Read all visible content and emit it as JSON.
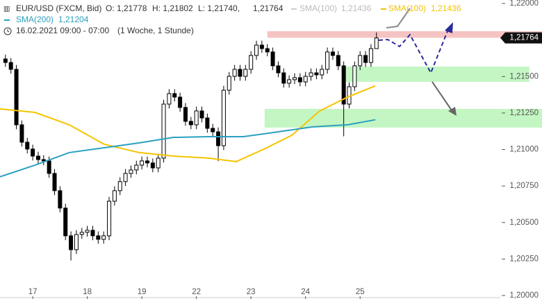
{
  "header": {
    "symbol": "EUR/USD (FXCM, Bid)",
    "open": "O: 1,21778",
    "high": "H: 1,21802",
    "low": "L: 1,21740,",
    "close": "1,21764",
    "sma100_gray": "SMA(100)",
    "sma100_gray_value": "1,21436",
    "sma100_value": "1,21436",
    "sma200_value": "1,21204",
    "date": "16.02.2021 09:00 - 07:00",
    "period": "(1 Woche, 1 Stunde)"
  },
  "chart_data": {
    "type": "candlestick",
    "xlim": [
      0.4,
      9.57
    ],
    "xticks": [
      {
        "value": 1,
        "label": "17"
      },
      {
        "value": 2,
        "label": "18"
      },
      {
        "value": 3,
        "label": "19"
      },
      {
        "value": 4,
        "label": "22"
      },
      {
        "value": 5,
        "label": "23"
      },
      {
        "value": 6,
        "label": "24"
      },
      {
        "value": 7,
        "label": "25"
      }
    ],
    "ylim": [
      1.2,
      1.22
    ],
    "yticks": [
      {
        "value": 1.22,
        "label": "1,22000"
      },
      {
        "value": 1.215,
        "label": "1,21500"
      },
      {
        "value": 1.2125,
        "label": "1,21250"
      },
      {
        "value": 1.21,
        "label": "1,21000"
      },
      {
        "value": 1.2075,
        "label": "1,20750"
      },
      {
        "value": 1.205,
        "label": "1,20500"
      },
      {
        "value": 1.2025,
        "label": "1,20250"
      },
      {
        "value": 1.2,
        "label": "1,20000"
      }
    ],
    "up_color": "#ffffff",
    "down_color": "#000000",
    "candles": {
      "x": [
        0.5,
        0.6,
        0.7,
        0.8,
        0.9,
        1.0,
        1.1,
        1.2,
        1.3,
        1.4,
        1.5,
        1.6,
        1.7,
        1.8,
        1.9,
        2.0,
        2.1,
        2.2,
        2.3,
        2.4,
        2.5,
        2.6,
        2.7,
        2.8,
        2.9,
        3.0,
        3.1,
        3.2,
        3.3,
        3.4,
        3.5,
        3.6,
        3.7,
        3.8,
        3.9,
        4.0,
        4.1,
        4.2,
        4.3,
        4.4,
        4.5,
        4.6,
        4.7,
        4.8,
        4.9,
        5.0,
        5.1,
        5.2,
        5.3,
        5.4,
        5.5,
        5.6,
        5.7,
        5.8,
        5.9,
        6.0,
        6.1,
        6.2,
        6.3,
        6.4,
        6.5,
        6.6,
        6.7,
        6.8,
        6.9,
        7.0,
        7.1,
        7.2,
        7.3
      ],
      "open": [
        1.2162,
        1.21596,
        1.21549,
        1.21169,
        1.2105,
        1.21003,
        1.20955,
        1.20931,
        1.20922,
        1.20836,
        1.20718,
        1.20599,
        1.20409,
        1.20314,
        1.20418,
        1.20433,
        1.20447,
        1.20409,
        1.20385,
        1.20409,
        1.20646,
        1.20718,
        1.2078,
        1.20836,
        1.2086,
        1.20893,
        1.20922,
        1.20908,
        1.20874,
        1.20941,
        1.21311,
        1.21383,
        1.21359,
        1.21288,
        1.21193,
        1.21169,
        1.21264,
        1.21216,
        1.21145,
        1.21121,
        1.21026,
        1.21406,
        1.21501,
        1.21549,
        1.21501,
        1.21549,
        1.21644,
        1.21715,
        1.21691,
        1.21668,
        1.21573,
        1.21525,
        1.21454,
        1.21478,
        1.21492,
        1.21463,
        1.21501,
        1.21525,
        1.21511,
        1.21549,
        1.21668,
        1.21644,
        1.21573,
        1.21311,
        1.2143,
        1.21573,
        1.21644,
        1.21596,
        1.21691
      ],
      "high": [
        1.2165,
        1.21626,
        1.21579,
        1.21199,
        1.2108,
        1.21033,
        1.20985,
        1.20961,
        1.20952,
        1.20866,
        1.20748,
        1.20629,
        1.20439,
        1.20448,
        1.20463,
        1.20477,
        1.20477,
        1.20439,
        1.20439,
        1.20676,
        1.20748,
        1.2081,
        1.20866,
        1.2089,
        1.20923,
        1.20952,
        1.20952,
        1.20938,
        1.20971,
        1.21341,
        1.21413,
        1.21413,
        1.21389,
        1.21318,
        1.21223,
        1.21294,
        1.21294,
        1.21246,
        1.21175,
        1.21151,
        1.21436,
        1.21531,
        1.21579,
        1.21579,
        1.21579,
        1.21674,
        1.21745,
        1.21745,
        1.21721,
        1.21698,
        1.21603,
        1.21555,
        1.21508,
        1.21522,
        1.21522,
        1.21531,
        1.21555,
        1.21555,
        1.21579,
        1.21698,
        1.21698,
        1.21674,
        1.21603,
        1.2146,
        1.21603,
        1.21674,
        1.21674,
        1.21721,
        1.21802
      ],
      "low": [
        1.21566,
        1.21519,
        1.21139,
        1.2102,
        1.20973,
        1.20925,
        1.20901,
        1.20892,
        1.20806,
        1.20688,
        1.20569,
        1.20379,
        1.2024,
        1.20284,
        1.20388,
        1.20403,
        1.20379,
        1.20355,
        1.20355,
        1.20379,
        1.20616,
        1.20688,
        1.2075,
        1.20806,
        1.2083,
        1.20863,
        1.20878,
        1.20844,
        1.20844,
        1.20911,
        1.21281,
        1.21329,
        1.21258,
        1.21163,
        1.21139,
        1.21139,
        1.21186,
        1.21115,
        1.21091,
        1.2092,
        1.20996,
        1.21376,
        1.21471,
        1.21471,
        1.21471,
        1.21519,
        1.21614,
        1.21661,
        1.21638,
        1.21543,
        1.21495,
        1.21424,
        1.21424,
        1.21448,
        1.21433,
        1.21433,
        1.21471,
        1.21481,
        1.21481,
        1.21519,
        1.21614,
        1.21543,
        1.2109,
        1.21281,
        1.214,
        1.21543,
        1.21566,
        1.21566,
        1.2174
      ],
      "close": [
        1.21596,
        1.21549,
        1.21169,
        1.2105,
        1.21003,
        1.20955,
        1.20931,
        1.20922,
        1.20836,
        1.20718,
        1.20599,
        1.20409,
        1.20314,
        1.20418,
        1.20433,
        1.20447,
        1.20409,
        1.20385,
        1.20409,
        1.20646,
        1.20718,
        1.2078,
        1.20836,
        1.2086,
        1.20893,
        1.20922,
        1.20908,
        1.20874,
        1.20941,
        1.21311,
        1.21383,
        1.21359,
        1.21288,
        1.21193,
        1.21169,
        1.21264,
        1.21216,
        1.21145,
        1.21121,
        1.21026,
        1.21406,
        1.21501,
        1.21549,
        1.21501,
        1.21549,
        1.21644,
        1.21715,
        1.21691,
        1.21668,
        1.21573,
        1.21525,
        1.21454,
        1.21478,
        1.21492,
        1.21463,
        1.21501,
        1.21525,
        1.21511,
        1.21549,
        1.21668,
        1.21644,
        1.21573,
        1.21311,
        1.2143,
        1.21573,
        1.21644,
        1.21596,
        1.21691,
        1.21764
      ]
    },
    "series": [
      {
        "name": "SMA(100)",
        "color": "#f5c400",
        "x": [
          0.4,
          1.04,
          1.67,
          2.31,
          2.95,
          3.58,
          4.22,
          4.73,
          5.24,
          5.75,
          6.26,
          6.77,
          7.28
        ],
        "values": [
          1.21278,
          1.21254,
          1.21169,
          1.21036,
          1.20979,
          1.20955,
          1.20941,
          1.20917,
          1.21003,
          1.21098,
          1.21264,
          1.21359,
          1.21436
        ]
      },
      {
        "name": "SMA(200)",
        "color": "#2aa0c0",
        "x": [
          0.4,
          1.04,
          1.67,
          2.31,
          2.95,
          3.58,
          4.22,
          4.86,
          5.5,
          6.13,
          6.77,
          7.28
        ],
        "values": [
          1.20813,
          1.20893,
          1.20979,
          1.21012,
          1.21045,
          1.21083,
          1.21088,
          1.21088,
          1.21121,
          1.21155,
          1.21169,
          1.21204
        ]
      }
    ],
    "zones": [
      {
        "color": "#f5b8b8",
        "x": [
          5.3,
          10.34
        ],
        "y": [
          1.21765,
          1.2181
        ]
      },
      {
        "color": "#b8f5b8",
        "x": [
          6.73,
          10.1
        ],
        "y": [
          1.21463,
          1.21568
        ]
      },
      {
        "color": "#b8f5b8",
        "x": [
          5.25,
          10.34
        ],
        "y": [
          1.2115,
          1.21278
        ]
      }
    ],
    "last_price": {
      "value": 1.21764,
      "label": "1,21764"
    }
  }
}
